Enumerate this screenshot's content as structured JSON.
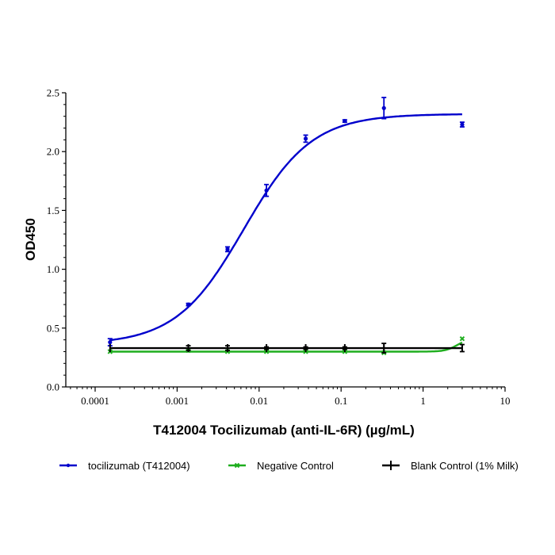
{
  "chart_data": {
    "type": "line",
    "title": "",
    "xlabel": "T412004 Tocilizumab (anti-IL-6R) (µg/mL)",
    "ylabel": "OD450",
    "xscale": "log",
    "xlim": [
      0.0001,
      10
    ],
    "ylim": [
      0,
      2.5
    ],
    "x_ticks": [
      "0.0001",
      "0.001",
      "0.01",
      "0.1",
      "1",
      "10"
    ],
    "y_ticks": [
      "0.0",
      "0.5",
      "1.0",
      "1.5",
      "2.0",
      "2.5"
    ],
    "grid": false,
    "legend_position": "bottom",
    "series": [
      {
        "name": "tocilizumab (T412004)",
        "color": "#0000cc",
        "marker": "dot",
        "x": [
          0.000152,
          0.00137,
          0.00412,
          0.0123,
          0.037,
          0.111,
          0.333,
          3.0
        ],
        "values": [
          0.38,
          0.7,
          1.17,
          1.67,
          2.11,
          2.26,
          2.37,
          2.23
        ],
        "errors": [
          0.03,
          0.01,
          0.02,
          0.05,
          0.03,
          0.01,
          0.09,
          0.02
        ],
        "fit": {
          "model": "4PL",
          "bottom": 0.36,
          "top": 2.32,
          "ec50": 0.0065,
          "hill": 1.05
        }
      },
      {
        "name": "Negative Control",
        "color": "#1fae1f",
        "marker": "x",
        "x": [
          0.000152,
          0.00137,
          0.00412,
          0.0123,
          0.037,
          0.111,
          0.333,
          3.0
        ],
        "values": [
          0.3,
          0.31,
          0.3,
          0.3,
          0.3,
          0.3,
          0.29,
          0.41
        ],
        "errors": [
          0,
          0,
          0,
          0,
          0,
          0,
          0,
          0
        ]
      },
      {
        "name": "Blank Control (1% Milk)",
        "color": "#000000",
        "marker": "plus",
        "x": [
          0.000152,
          0.00137,
          0.00412,
          0.0123,
          0.037,
          0.111,
          0.333,
          3.0
        ],
        "values": [
          0.33,
          0.33,
          0.33,
          0.33,
          0.33,
          0.33,
          0.33,
          0.33
        ],
        "errors": [
          0,
          0.02,
          0.02,
          0.01,
          0.01,
          0.01,
          0.04,
          0.03
        ]
      }
    ]
  }
}
